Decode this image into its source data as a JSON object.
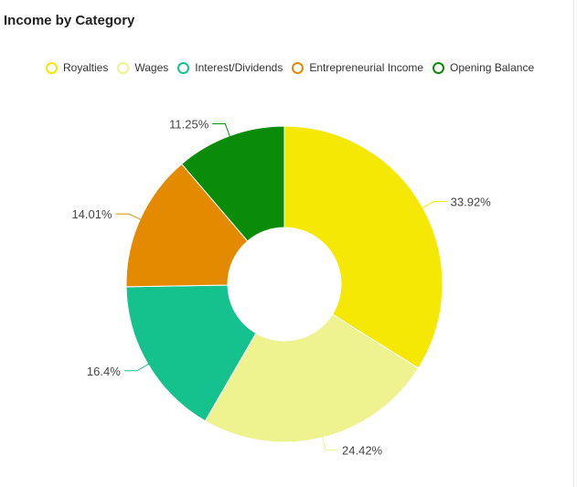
{
  "card": {
    "title": "Income by Category"
  },
  "chart_data": {
    "type": "pie",
    "variant": "donut",
    "title": "Income by Category",
    "legend_position": "top",
    "categories": [
      "Royalties",
      "Wages",
      "Interest/Dividends",
      "Entrepreneurial Income",
      "Opening Balance"
    ],
    "values": [
      33.92,
      24.42,
      16.4,
      14.01,
      11.25
    ],
    "labels": [
      "33.92%",
      "24.42%",
      "16.4%",
      "14.01%",
      "11.25%"
    ],
    "colors": [
      "#f5e805",
      "#eef28f",
      "#15c28e",
      "#e38a00",
      "#0a8c0a"
    ]
  }
}
